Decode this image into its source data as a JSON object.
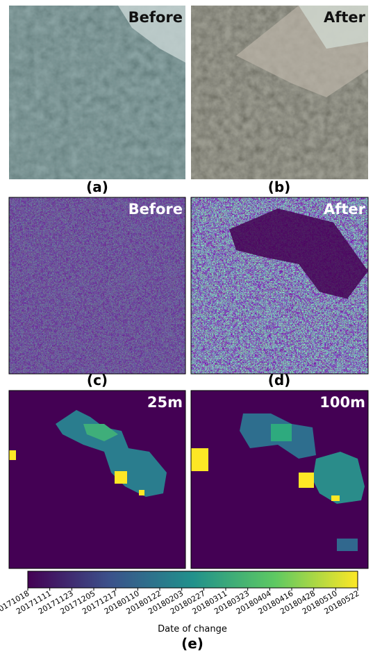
{
  "optical_panels": [
    {
      "label": "(a)",
      "overlay": "Before"
    },
    {
      "label": "(b)",
      "overlay": "After"
    }
  ],
  "sar_panels": [
    {
      "label": "(c)",
      "overlay": "Before"
    },
    {
      "label": "(d)",
      "overlay": "After"
    }
  ],
  "map_panels": [
    {
      "overlay": "25m"
    },
    {
      "overlay": "100m"
    }
  ],
  "colorbar": {
    "ticks": [
      "20171018",
      "20171111",
      "20171123",
      "20171205",
      "20171217",
      "20180110",
      "20180122",
      "20180203",
      "20180227",
      "20180311",
      "20180323",
      "20180404",
      "20180416",
      "20180428",
      "20180510",
      "20180522"
    ],
    "label": "Date of change"
  },
  "caption": "(e)"
}
